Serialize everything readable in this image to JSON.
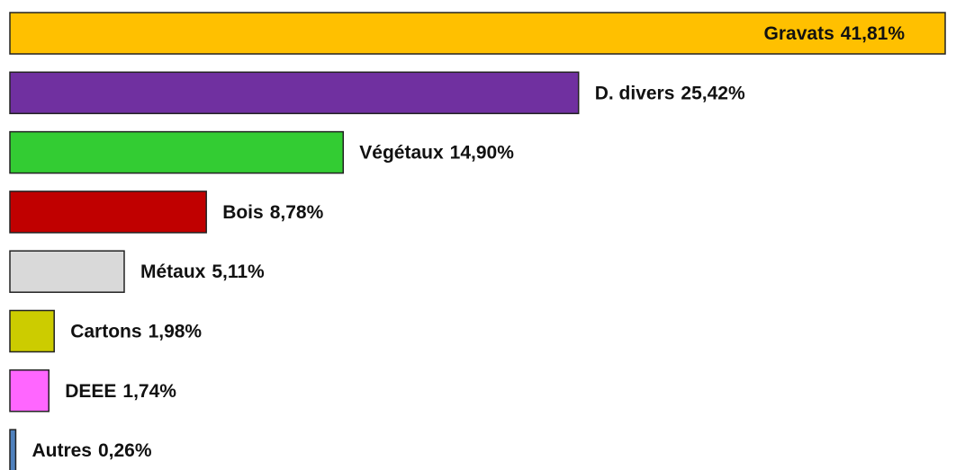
{
  "chart_data": {
    "type": "bar",
    "orientation": "horizontal",
    "categories": [
      "Gravats",
      "D. divers",
      "Végétaux",
      "Bois",
      "Métaux",
      "Cartons",
      "DEEE",
      "Autres"
    ],
    "values": [
      41.81,
      25.42,
      14.9,
      8.78,
      5.11,
      1.98,
      1.74,
      0.26
    ],
    "value_labels": [
      "41,81%",
      "25,42%",
      "14,90%",
      "8,78%",
      "5,11%",
      "1,98%",
      "1,74%",
      "0,26%"
    ],
    "colors": [
      "#FFC000",
      "#7030A0",
      "#33CC33",
      "#C00000",
      "#D9D9D9",
      "#CCCC00",
      "#FF66FF",
      "#4F81BD"
    ]
  }
}
